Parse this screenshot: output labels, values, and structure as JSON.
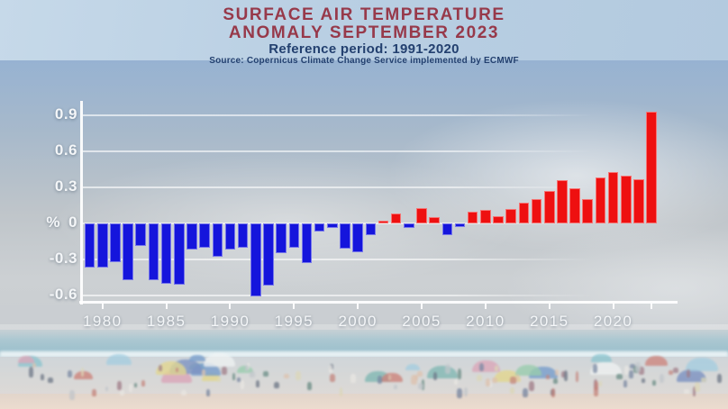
{
  "title": {
    "line1": "SURFACE AIR TEMPERATURE",
    "line2": "ANOMALY SEPTEMBER 2023",
    "reference": "Reference period: 1991-2020",
    "source": "Source: Copernicus Climate Change Service implemented by ECMWF"
  },
  "colors": {
    "title_red": "#97394a",
    "subtitle_navy": "#23406f",
    "bar_positive": "#ee1010",
    "bar_negative": "#1515dc",
    "axis_white": "#f4f6f8"
  },
  "background": {
    "description": "hazy photo of a crowded beach: pale blue sky, sea with foam line, colorful umbrellas and people, sand strip",
    "sky_top": "#bdd2e4",
    "sky_mid": "#93b2d5",
    "sea": "#84b0c0",
    "sand": "#e9d7c8"
  },
  "chart_data": {
    "type": "bar",
    "title": "Surface air temperature anomaly September 2023",
    "subtitle": "Reference period: 1991-2020",
    "source": "Copernicus Climate Change Service implemented by ECMWF",
    "unit_label": "%",
    "grid": true,
    "legend": "none",
    "ylim": [
      -0.7,
      1.0
    ],
    "y_ticks": [
      {
        "value": 0.9,
        "label": "0.9"
      },
      {
        "value": 0.6,
        "label": "0.6"
      },
      {
        "value": 0.3,
        "label": "0.3"
      },
      {
        "value": 0,
        "label": "0"
      },
      {
        "value": -0.3,
        "label": "-0.3"
      },
      {
        "value": -0.6,
        "label": "-0.6"
      }
    ],
    "x_ticks": [
      {
        "year": 1980,
        "label": "1980"
      },
      {
        "year": 1985,
        "label": "1985"
      },
      {
        "year": 1990,
        "label": "1990"
      },
      {
        "year": 1995,
        "label": "1995"
      },
      {
        "year": 2000,
        "label": "2000"
      },
      {
        "year": 2005,
        "label": "2005"
      },
      {
        "year": 2010,
        "label": "2010"
      },
      {
        "year": 2015,
        "label": "2015"
      },
      {
        "year": 2020,
        "label": "2020"
      },
      {
        "year": 2023,
        "label": ""
      }
    ],
    "categories": [
      1979,
      1980,
      1981,
      1982,
      1983,
      1984,
      1985,
      1986,
      1987,
      1988,
      1989,
      1990,
      1991,
      1992,
      1993,
      1994,
      1995,
      1996,
      1997,
      1998,
      1999,
      2000,
      2001,
      2002,
      2003,
      2004,
      2005,
      2006,
      2007,
      2008,
      2009,
      2010,
      2011,
      2012,
      2013,
      2014,
      2015,
      2016,
      2017,
      2018,
      2019,
      2020,
      2021,
      2022,
      2023
    ],
    "values": [
      -0.37,
      -0.37,
      -0.32,
      -0.47,
      -0.19,
      -0.47,
      -0.5,
      -0.51,
      -0.22,
      -0.2,
      -0.28,
      -0.22,
      -0.2,
      -0.61,
      -0.52,
      -0.25,
      -0.2,
      -0.33,
      -0.07,
      -0.04,
      -0.21,
      -0.24,
      -0.1,
      0.02,
      0.08,
      -0.04,
      0.13,
      0.05,
      -0.1,
      -0.03,
      0.1,
      0.11,
      0.06,
      0.12,
      0.17,
      0.2,
      0.27,
      0.36,
      0.29,
      0.2,
      0.38,
      0.43,
      0.4,
      0.37,
      0.93
    ],
    "bar_color_positive": "#ee1010",
    "bar_color_negative": "#1515dc"
  }
}
